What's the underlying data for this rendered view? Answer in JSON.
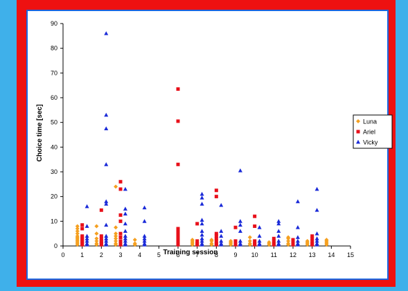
{
  "chart_data": {
    "type": "scatter",
    "xlabel": "Training session",
    "ylabel": "Choice time [sec]",
    "xlim": [
      0,
      15
    ],
    "ylim": [
      0,
      90
    ],
    "xticks": [
      0,
      1,
      2,
      3,
      4,
      5,
      6,
      7,
      8,
      9,
      10,
      11,
      12,
      13,
      14,
      15
    ],
    "yticks": [
      0,
      10,
      20,
      30,
      40,
      50,
      60,
      70,
      80,
      90
    ],
    "grid": false,
    "legend_position": "right",
    "series": [
      {
        "name": "Luna",
        "marker": "diamond",
        "color": "#f5a020",
        "points": [
          [
            0.75,
            8
          ],
          [
            0.75,
            7
          ],
          [
            0.75,
            6
          ],
          [
            0.75,
            5
          ],
          [
            0.75,
            4
          ],
          [
            0.75,
            3.5
          ],
          [
            0.75,
            3
          ],
          [
            0.75,
            2.5
          ],
          [
            0.75,
            2
          ],
          [
            0.75,
            1.5
          ],
          [
            0.75,
            1
          ],
          [
            0.75,
            0.5
          ],
          [
            1.75,
            8
          ],
          [
            1.75,
            5
          ],
          [
            1.75,
            3
          ],
          [
            1.75,
            2
          ],
          [
            1.75,
            1
          ],
          [
            1.75,
            0.5
          ],
          [
            2.75,
            24
          ],
          [
            2.75,
            7.5
          ],
          [
            2.75,
            5
          ],
          [
            2.75,
            4
          ],
          [
            2.75,
            3
          ],
          [
            2.75,
            2
          ],
          [
            2.75,
            1
          ],
          [
            2.75,
            0.5
          ],
          [
            3.75,
            2.5
          ],
          [
            3.75,
            1
          ],
          [
            3.75,
            0.5
          ],
          [
            6.75,
            2.5
          ],
          [
            6.75,
            2
          ],
          [
            6.75,
            1.5
          ],
          [
            6.75,
            1
          ],
          [
            6.75,
            0.5
          ],
          [
            7.75,
            2.5
          ],
          [
            7.75,
            2
          ],
          [
            7.75,
            1
          ],
          [
            7.75,
            0.5
          ],
          [
            8.75,
            2
          ],
          [
            8.75,
            1.5
          ],
          [
            8.75,
            1
          ],
          [
            8.75,
            0.5
          ],
          [
            9.75,
            3.5
          ],
          [
            9.75,
            2
          ],
          [
            9.75,
            1
          ],
          [
            9.75,
            0.5
          ],
          [
            10.75,
            1.5
          ],
          [
            10.75,
            1
          ],
          [
            10.75,
            0.5
          ],
          [
            11.75,
            3.5
          ],
          [
            11.75,
            3
          ],
          [
            11.75,
            2
          ],
          [
            11.75,
            1
          ],
          [
            11.75,
            0.5
          ],
          [
            12.75,
            2
          ],
          [
            12.75,
            1.5
          ],
          [
            12.75,
            1
          ],
          [
            12.75,
            0.5
          ],
          [
            13.75,
            2.5
          ],
          [
            13.75,
            2
          ],
          [
            13.75,
            1.5
          ],
          [
            13.75,
            1
          ],
          [
            13.75,
            0.5
          ]
        ]
      },
      {
        "name": "Ariel",
        "marker": "square",
        "color": "#e8101a",
        "points": [
          [
            1,
            8.5
          ],
          [
            1,
            7
          ],
          [
            1,
            4
          ],
          [
            1,
            3.5
          ],
          [
            1,
            3
          ],
          [
            1,
            2.5
          ],
          [
            1,
            2
          ],
          [
            1,
            1.5
          ],
          [
            1,
            1
          ],
          [
            1,
            0.5
          ],
          [
            2,
            14.5
          ],
          [
            2,
            4
          ],
          [
            2,
            3
          ],
          [
            2,
            2
          ],
          [
            2,
            1.5
          ],
          [
            2,
            1
          ],
          [
            2,
            0.5
          ],
          [
            3,
            26
          ],
          [
            3,
            23
          ],
          [
            3,
            12.5
          ],
          [
            3,
            10
          ],
          [
            3,
            5
          ],
          [
            3,
            3.5
          ],
          [
            3,
            2
          ],
          [
            3,
            1
          ],
          [
            3,
            0.5
          ],
          [
            6,
            63.5
          ],
          [
            6,
            50.5
          ],
          [
            6,
            33
          ],
          [
            6,
            7
          ],
          [
            6,
            6
          ],
          [
            6,
            5.5
          ],
          [
            6,
            4.5
          ],
          [
            6,
            3.5
          ],
          [
            6,
            2.5
          ],
          [
            6,
            1.5
          ],
          [
            6,
            0.5
          ],
          [
            7,
            9
          ],
          [
            7,
            2
          ],
          [
            7,
            1
          ],
          [
            7,
            0.5
          ],
          [
            8,
            22.5
          ],
          [
            8,
            20
          ],
          [
            8,
            5
          ],
          [
            8,
            4
          ],
          [
            8,
            3
          ],
          [
            8,
            2
          ],
          [
            8,
            1
          ],
          [
            8,
            0.5
          ],
          [
            9,
            7.5
          ],
          [
            9,
            2
          ],
          [
            9,
            1
          ],
          [
            9,
            0.5
          ],
          [
            10,
            12
          ],
          [
            10,
            8
          ],
          [
            10,
            2
          ],
          [
            10,
            1
          ],
          [
            10,
            0.5
          ],
          [
            11,
            3
          ],
          [
            11,
            2
          ],
          [
            11,
            1
          ],
          [
            11,
            0.5
          ],
          [
            12,
            2.5
          ],
          [
            12,
            2
          ],
          [
            12,
            1
          ],
          [
            12,
            0.5
          ],
          [
            13,
            4
          ],
          [
            13,
            3
          ],
          [
            13,
            2
          ],
          [
            13,
            1
          ],
          [
            13,
            0.5
          ]
        ]
      },
      {
        "name": "Vicky",
        "marker": "triangle",
        "color": "#1a2ad8",
        "points": [
          [
            1.25,
            16
          ],
          [
            1.25,
            8
          ],
          [
            1.25,
            4
          ],
          [
            1.25,
            3
          ],
          [
            1.25,
            2
          ],
          [
            1.25,
            1
          ],
          [
            1.25,
            0.5
          ],
          [
            2.25,
            86
          ],
          [
            2.25,
            53
          ],
          [
            2.25,
            47.5
          ],
          [
            2.25,
            33
          ],
          [
            2.25,
            18
          ],
          [
            2.25,
            17
          ],
          [
            2.25,
            8.5
          ],
          [
            2.25,
            4
          ],
          [
            2.25,
            3
          ],
          [
            2.25,
            2
          ],
          [
            2.25,
            1
          ],
          [
            2.25,
            0.5
          ],
          [
            3.25,
            23
          ],
          [
            3.25,
            15
          ],
          [
            3.25,
            13
          ],
          [
            3.25,
            9
          ],
          [
            3.25,
            6
          ],
          [
            3.25,
            4
          ],
          [
            3.25,
            3
          ],
          [
            3.25,
            2
          ],
          [
            3.25,
            1
          ],
          [
            3.25,
            0.5
          ],
          [
            4.25,
            15.5
          ],
          [
            4.25,
            10
          ],
          [
            4.25,
            4
          ],
          [
            4.25,
            3
          ],
          [
            4.25,
            2
          ],
          [
            4.25,
            1
          ],
          [
            4.25,
            0.5
          ],
          [
            7.25,
            21
          ],
          [
            7.25,
            19.5
          ],
          [
            7.25,
            17
          ],
          [
            7.25,
            10.5
          ],
          [
            7.25,
            9
          ],
          [
            7.25,
            6
          ],
          [
            7.25,
            4.5
          ],
          [
            7.25,
            3
          ],
          [
            7.25,
            2
          ],
          [
            7.25,
            1
          ],
          [
            7.25,
            0.5
          ],
          [
            8.25,
            16.5
          ],
          [
            8.25,
            6
          ],
          [
            8.25,
            4
          ],
          [
            8.25,
            2
          ],
          [
            8.25,
            1
          ],
          [
            8.25,
            0.5
          ],
          [
            9.25,
            30.5
          ],
          [
            9.25,
            10
          ],
          [
            9.25,
            8.5
          ],
          [
            9.25,
            6
          ],
          [
            9.25,
            2
          ],
          [
            9.25,
            1
          ],
          [
            9.25,
            0.5
          ],
          [
            10.25,
            7.5
          ],
          [
            10.25,
            4
          ],
          [
            10.25,
            2
          ],
          [
            10.25,
            1
          ],
          [
            10.25,
            0.5
          ],
          [
            11.25,
            10
          ],
          [
            11.25,
            9
          ],
          [
            11.25,
            6
          ],
          [
            11.25,
            4
          ],
          [
            11.25,
            2
          ],
          [
            11.25,
            1
          ],
          [
            11.25,
            0.5
          ],
          [
            12.25,
            18
          ],
          [
            12.25,
            7.5
          ],
          [
            12.25,
            3.5
          ],
          [
            12.25,
            2
          ],
          [
            12.25,
            1
          ],
          [
            12.25,
            0.5
          ],
          [
            13.25,
            23
          ],
          [
            13.25,
            14.5
          ],
          [
            13.25,
            5
          ],
          [
            13.25,
            3
          ],
          [
            13.25,
            2
          ],
          [
            13.25,
            1
          ],
          [
            13.25,
            0.5
          ]
        ]
      }
    ]
  }
}
